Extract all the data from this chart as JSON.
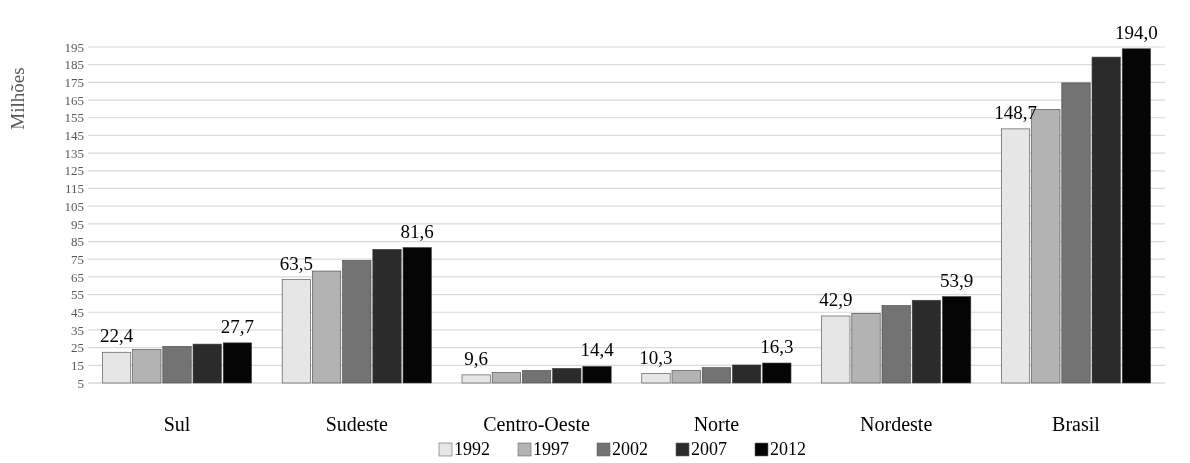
{
  "chart_data": {
    "type": "bar",
    "ylabel": "Milhões",
    "categories": [
      "Sul",
      "Sudeste",
      "Centro-Oeste",
      "Norte",
      "Nordeste",
      "Brasil"
    ],
    "series": [
      {
        "name": "1992",
        "color": "#e6e6e6",
        "values": [
          22.4,
          63.5,
          9.6,
          10.3,
          42.9,
          148.7
        ],
        "value_labels": [
          "22,4",
          "63,5",
          "9,6",
          "10,3",
          "42,9",
          "148,7"
        ]
      },
      {
        "name": "1997",
        "color": "#b3b3b3",
        "values": [
          24.0,
          68.3,
          11.0,
          12.1,
          44.4,
          159.7
        ]
      },
      {
        "name": "2002",
        "color": "#737373",
        "values": [
          25.7,
          74.3,
          12.1,
          13.7,
          48.8,
          174.7
        ]
      },
      {
        "name": "2007",
        "color": "#2b2b2b",
        "values": [
          27.0,
          80.6,
          13.3,
          15.2,
          51.8,
          189.3
        ]
      },
      {
        "name": "2012",
        "color": "#050505",
        "values": [
          27.7,
          81.6,
          14.4,
          16.3,
          53.9,
          194.0
        ],
        "value_labels": [
          "27,7",
          "81,6",
          "14,4",
          "16,3",
          "53,9",
          "194,0"
        ]
      }
    ],
    "ylim": [
      5,
      195
    ],
    "yticks": [
      5,
      15,
      25,
      35,
      45,
      55,
      65,
      75,
      85,
      95,
      105,
      115,
      125,
      135,
      145,
      155,
      165,
      175,
      185,
      195
    ],
    "grid": "y",
    "legend": "bottom"
  }
}
